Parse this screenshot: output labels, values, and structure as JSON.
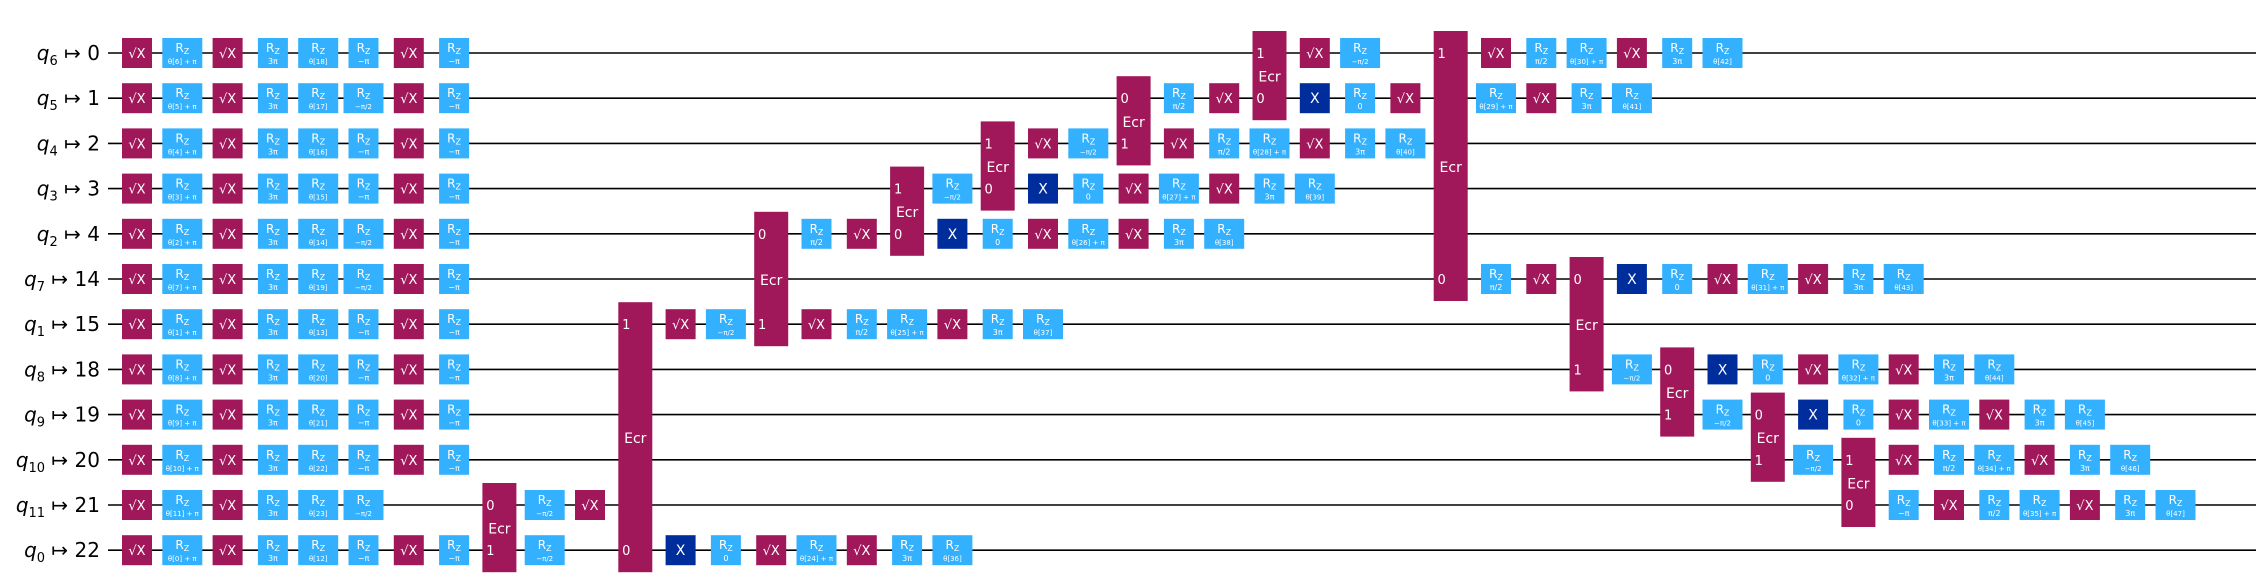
{
  "colors": {
    "sx": "#a0185a",
    "rz": "#33b1ff",
    "x": "#002d9c",
    "ecr": "#a0185a",
    "wire": "#000000",
    "text_on_gate": "#ffffff",
    "background": "#ffffff"
  },
  "wires": [
    {
      "qubit": "q",
      "sub": "6",
      "index": "0"
    },
    {
      "qubit": "q",
      "sub": "5",
      "index": "1"
    },
    {
      "qubit": "q",
      "sub": "4",
      "index": "2"
    },
    {
      "qubit": "q",
      "sub": "3",
      "index": "3"
    },
    {
      "qubit": "q",
      "sub": "2",
      "index": "4"
    },
    {
      "qubit": "q",
      "sub": "7",
      "index": "14"
    },
    {
      "qubit": "q",
      "sub": "1",
      "index": "15"
    },
    {
      "qubit": "q",
      "sub": "8",
      "index": "18"
    },
    {
      "qubit": "q",
      "sub": "9",
      "index": "19"
    },
    {
      "qubit": "q",
      "sub": "10",
      "index": "20"
    },
    {
      "qubit": "q",
      "sub": "11",
      "index": "21"
    },
    {
      "qubit": "q",
      "sub": "0",
      "index": "22"
    }
  ],
  "gate_labels": {
    "sx": "√X",
    "rz": "R",
    "rz_sub": "Z",
    "x": "X",
    "ecr": "Ecr"
  },
  "gates": [
    {
      "type": "sx",
      "row": 0,
      "col": 0
    },
    {
      "type": "rz",
      "row": 0,
      "col": 1,
      "param": "θ[6] + π"
    },
    {
      "type": "sx",
      "row": 0,
      "col": 2
    },
    {
      "type": "rz",
      "row": 0,
      "col": 3,
      "param": "3π"
    },
    {
      "type": "rz",
      "row": 0,
      "col": 4,
      "param": "θ[18]"
    },
    {
      "type": "rz",
      "row": 0,
      "col": 5,
      "param": "−π"
    },
    {
      "type": "sx",
      "row": 0,
      "col": 6
    },
    {
      "type": "rz",
      "row": 0,
      "col": 7,
      "param": "−π"
    },
    {
      "type": "sx",
      "row": 1,
      "col": 0
    },
    {
      "type": "rz",
      "row": 1,
      "col": 1,
      "param": "θ[5] + π"
    },
    {
      "type": "sx",
      "row": 1,
      "col": 2
    },
    {
      "type": "rz",
      "row": 1,
      "col": 3,
      "param": "3π"
    },
    {
      "type": "rz",
      "row": 1,
      "col": 4,
      "param": "θ[17]"
    },
    {
      "type": "rz",
      "row": 1,
      "col": 5,
      "param": "−π/2"
    },
    {
      "type": "sx",
      "row": 1,
      "col": 6
    },
    {
      "type": "rz",
      "row": 1,
      "col": 7,
      "param": "−π"
    },
    {
      "type": "sx",
      "row": 2,
      "col": 0
    },
    {
      "type": "rz",
      "row": 2,
      "col": 1,
      "param": "θ[4] + π"
    },
    {
      "type": "sx",
      "row": 2,
      "col": 2
    },
    {
      "type": "rz",
      "row": 2,
      "col": 3,
      "param": "3π"
    },
    {
      "type": "rz",
      "row": 2,
      "col": 4,
      "param": "θ[16]"
    },
    {
      "type": "rz",
      "row": 2,
      "col": 5,
      "param": "−π"
    },
    {
      "type": "sx",
      "row": 2,
      "col": 6
    },
    {
      "type": "rz",
      "row": 2,
      "col": 7,
      "param": "−π"
    },
    {
      "type": "sx",
      "row": 3,
      "col": 0
    },
    {
      "type": "rz",
      "row": 3,
      "col": 1,
      "param": "θ[3] + π"
    },
    {
      "type": "sx",
      "row": 3,
      "col": 2
    },
    {
      "type": "rz",
      "row": 3,
      "col": 3,
      "param": "3π"
    },
    {
      "type": "rz",
      "row": 3,
      "col": 4,
      "param": "θ[15]"
    },
    {
      "type": "rz",
      "row": 3,
      "col": 5,
      "param": "−π"
    },
    {
      "type": "sx",
      "row": 3,
      "col": 6
    },
    {
      "type": "rz",
      "row": 3,
      "col": 7,
      "param": "−π"
    },
    {
      "type": "sx",
      "row": 4,
      "col": 0
    },
    {
      "type": "rz",
      "row": 4,
      "col": 1,
      "param": "θ[2] + π"
    },
    {
      "type": "sx",
      "row": 4,
      "col": 2
    },
    {
      "type": "rz",
      "row": 4,
      "col": 3,
      "param": "3π"
    },
    {
      "type": "rz",
      "row": 4,
      "col": 4,
      "param": "θ[14]"
    },
    {
      "type": "rz",
      "row": 4,
      "col": 5,
      "param": "−π/2"
    },
    {
      "type": "sx",
      "row": 4,
      "col": 6
    },
    {
      "type": "rz",
      "row": 4,
      "col": 7,
      "param": "−π"
    },
    {
      "type": "sx",
      "row": 5,
      "col": 0
    },
    {
      "type": "rz",
      "row": 5,
      "col": 1,
      "param": "θ[7] + π"
    },
    {
      "type": "sx",
      "row": 5,
      "col": 2
    },
    {
      "type": "rz",
      "row": 5,
      "col": 3,
      "param": "3π"
    },
    {
      "type": "rz",
      "row": 5,
      "col": 4,
      "param": "θ[19]"
    },
    {
      "type": "rz",
      "row": 5,
      "col": 5,
      "param": "−π/2"
    },
    {
      "type": "sx",
      "row": 5,
      "col": 6
    },
    {
      "type": "rz",
      "row": 5,
      "col": 7,
      "param": "−π"
    },
    {
      "type": "sx",
      "row": 6,
      "col": 0
    },
    {
      "type": "rz",
      "row": 6,
      "col": 1,
      "param": "θ[1] + π"
    },
    {
      "type": "sx",
      "row": 6,
      "col": 2
    },
    {
      "type": "rz",
      "row": 6,
      "col": 3,
      "param": "3π"
    },
    {
      "type": "rz",
      "row": 6,
      "col": 4,
      "param": "θ[13]"
    },
    {
      "type": "rz",
      "row": 6,
      "col": 5,
      "param": "−π"
    },
    {
      "type": "sx",
      "row": 6,
      "col": 6
    },
    {
      "type": "rz",
      "row": 6,
      "col": 7,
      "param": "−π"
    },
    {
      "type": "sx",
      "row": 7,
      "col": 0
    },
    {
      "type": "rz",
      "row": 7,
      "col": 1,
      "param": "θ[8] + π"
    },
    {
      "type": "sx",
      "row": 7,
      "col": 2
    },
    {
      "type": "rz",
      "row": 7,
      "col": 3,
      "param": "3π"
    },
    {
      "type": "rz",
      "row": 7,
      "col": 4,
      "param": "θ[20]"
    },
    {
      "type": "rz",
      "row": 7,
      "col": 5,
      "param": "−π"
    },
    {
      "type": "sx",
      "row": 7,
      "col": 6
    },
    {
      "type": "rz",
      "row": 7,
      "col": 7,
      "param": "−π"
    },
    {
      "type": "sx",
      "row": 8,
      "col": 0
    },
    {
      "type": "rz",
      "row": 8,
      "col": 1,
      "param": "θ[9] + π"
    },
    {
      "type": "sx",
      "row": 8,
      "col": 2
    },
    {
      "type": "rz",
      "row": 8,
      "col": 3,
      "param": "3π"
    },
    {
      "type": "rz",
      "row": 8,
      "col": 4,
      "param": "θ[21]"
    },
    {
      "type": "rz",
      "row": 8,
      "col": 5,
      "param": "−π"
    },
    {
      "type": "sx",
      "row": 8,
      "col": 6
    },
    {
      "type": "rz",
      "row": 8,
      "col": 7,
      "param": "−π"
    },
    {
      "type": "sx",
      "row": 9,
      "col": 0
    },
    {
      "type": "rz",
      "row": 9,
      "col": 1,
      "param": "θ[10] + π"
    },
    {
      "type": "sx",
      "row": 9,
      "col": 2
    },
    {
      "type": "rz",
      "row": 9,
      "col": 3,
      "param": "3π"
    },
    {
      "type": "rz",
      "row": 9,
      "col": 4,
      "param": "θ[22]"
    },
    {
      "type": "rz",
      "row": 9,
      "col": 5,
      "param": "−π"
    },
    {
      "type": "sx",
      "row": 9,
      "col": 6
    },
    {
      "type": "rz",
      "row": 9,
      "col": 7,
      "param": "−π"
    },
    {
      "type": "sx",
      "row": 10,
      "col": 0
    },
    {
      "type": "rz",
      "row": 10,
      "col": 1,
      "param": "θ[11] + π"
    },
    {
      "type": "sx",
      "row": 10,
      "col": 2
    },
    {
      "type": "rz",
      "row": 10,
      "col": 3,
      "param": "3π"
    },
    {
      "type": "rz",
      "row": 10,
      "col": 4,
      "param": "θ[23]"
    },
    {
      "type": "rz",
      "row": 10,
      "col": 5,
      "param": "−π/2"
    },
    {
      "type": "sx",
      "row": 11,
      "col": 0
    },
    {
      "type": "rz",
      "row": 11,
      "col": 1,
      "param": "θ[0] + π"
    },
    {
      "type": "sx",
      "row": 11,
      "col": 2
    },
    {
      "type": "rz",
      "row": 11,
      "col": 3,
      "param": "3π"
    },
    {
      "type": "rz",
      "row": 11,
      "col": 4,
      "param": "θ[12]"
    },
    {
      "type": "rz",
      "row": 11,
      "col": 5,
      "param": "−π"
    },
    {
      "type": "sx",
      "row": 11,
      "col": 6
    },
    {
      "type": "rz",
      "row": 11,
      "col": 7,
      "param": "−π"
    },
    {
      "type": "ecr",
      "col": 8,
      "top": 10,
      "bottom": 11,
      "top_port": "0",
      "bottom_port": "1"
    },
    {
      "type": "rz",
      "row": 10,
      "col": 9,
      "param": "−π/2"
    },
    {
      "type": "rz",
      "row": 11,
      "col": 9,
      "param": "−π/2"
    },
    {
      "type": "sx",
      "row": 10,
      "col": 10
    },
    {
      "type": "ecr",
      "col": 11,
      "top": 6,
      "bottom": 11,
      "top_port": "1",
      "bottom_port": "0"
    },
    {
      "type": "sx",
      "row": 6,
      "col": 12
    },
    {
      "type": "x",
      "row": 11,
      "col": 12
    },
    {
      "type": "rz",
      "row": 6,
      "col": 13,
      "param": "−π/2"
    },
    {
      "type": "rz",
      "row": 11,
      "col": 13,
      "param": "0"
    },
    {
      "type": "ecr",
      "col": 14,
      "top": 4,
      "bottom": 6,
      "top_port": "0",
      "bottom_port": "1"
    },
    {
      "type": "sx",
      "row": 11,
      "col": 14
    },
    {
      "type": "rz",
      "row": 4,
      "col": 15,
      "param": "π/2"
    },
    {
      "type": "sx",
      "row": 6,
      "col": 15
    },
    {
      "type": "rz",
      "row": 11,
      "col": 15,
      "param": "θ[24] + π"
    },
    {
      "type": "sx",
      "row": 4,
      "col": 16
    },
    {
      "type": "rz",
      "row": 6,
      "col": 16,
      "param": "π/2"
    },
    {
      "type": "sx",
      "row": 11,
      "col": 16
    },
    {
      "type": "ecr",
      "col": 17,
      "top": 3,
      "bottom": 4,
      "top_port": "1",
      "bottom_port": "0"
    },
    {
      "type": "rz",
      "row": 6,
      "col": 17,
      "param": "θ[25] + π"
    },
    {
      "type": "rz",
      "row": 11,
      "col": 17,
      "param": "3π"
    },
    {
      "type": "rz",
      "row": 3,
      "col": 18,
      "param": "−π/2"
    },
    {
      "type": "x",
      "row": 4,
      "col": 18
    },
    {
      "type": "sx",
      "row": 6,
      "col": 18
    },
    {
      "type": "rz",
      "row": 11,
      "col": 18,
      "param": "θ[36]"
    },
    {
      "type": "ecr",
      "col": 19,
      "top": 2,
      "bottom": 3,
      "top_port": "1",
      "bottom_port": "0"
    },
    {
      "type": "rz",
      "row": 4,
      "col": 19,
      "param": "0"
    },
    {
      "type": "rz",
      "row": 6,
      "col": 19,
      "param": "3π"
    },
    {
      "type": "sx",
      "row": 2,
      "col": 20
    },
    {
      "type": "x",
      "row": 3,
      "col": 20
    },
    {
      "type": "sx",
      "row": 4,
      "col": 20
    },
    {
      "type": "rz",
      "row": 6,
      "col": 20,
      "param": "θ[37]"
    },
    {
      "type": "rz",
      "row": 2,
      "col": 21,
      "param": "−π/2"
    },
    {
      "type": "rz",
      "row": 3,
      "col": 21,
      "param": "0"
    },
    {
      "type": "rz",
      "row": 4,
      "col": 21,
      "param": "θ[26] + π"
    },
    {
      "type": "ecr",
      "col": 22,
      "top": 1,
      "bottom": 2,
      "top_port": "0",
      "bottom_port": "1"
    },
    {
      "type": "sx",
      "row": 3,
      "col": 22
    },
    {
      "type": "sx",
      "row": 4,
      "col": 22
    },
    {
      "type": "rz",
      "row": 1,
      "col": 23,
      "param": "π/2"
    },
    {
      "type": "sx",
      "row": 2,
      "col": 23
    },
    {
      "type": "rz",
      "row": 3,
      "col": 23,
      "param": "θ[27] + π"
    },
    {
      "type": "rz",
      "row": 4,
      "col": 23,
      "param": "3π"
    },
    {
      "type": "sx",
      "row": 1,
      "col": 24
    },
    {
      "type": "rz",
      "row": 2,
      "col": 24,
      "param": "π/2"
    },
    {
      "type": "sx",
      "row": 3,
      "col": 24
    },
    {
      "type": "rz",
      "row": 4,
      "col": 24,
      "param": "θ[38]"
    },
    {
      "type": "ecr",
      "col": 25,
      "top": 0,
      "bottom": 1,
      "top_port": "1",
      "bottom_port": "0"
    },
    {
      "type": "rz",
      "row": 2,
      "col": 25,
      "param": "θ[28] + π"
    },
    {
      "type": "rz",
      "row": 3,
      "col": 25,
      "param": "3π"
    },
    {
      "type": "sx",
      "row": 0,
      "col": 26
    },
    {
      "type": "x",
      "row": 1,
      "col": 26
    },
    {
      "type": "sx",
      "row": 2,
      "col": 26
    },
    {
      "type": "rz",
      "row": 3,
      "col": 26,
      "param": "θ[39]"
    },
    {
      "type": "rz",
      "row": 0,
      "col": 27,
      "param": "−π/2"
    },
    {
      "type": "rz",
      "row": 1,
      "col": 27,
      "param": "0"
    },
    {
      "type": "rz",
      "row": 2,
      "col": 27,
      "param": "3π"
    },
    {
      "type": "sx",
      "row": 1,
      "col": 28
    },
    {
      "type": "rz",
      "row": 2,
      "col": 28,
      "param": "θ[40]"
    },
    {
      "type": "ecr",
      "col": 29,
      "top": 0,
      "bottom": 5,
      "top_port": "1",
      "bottom_port": "0"
    },
    {
      "type": "sx",
      "row": 0,
      "col": 30
    },
    {
      "type": "rz",
      "row": 1,
      "col": 30,
      "param": "θ[29] + π"
    },
    {
      "type": "rz",
      "row": 5,
      "col": 30,
      "param": "π/2"
    },
    {
      "type": "rz",
      "row": 0,
      "col": 31,
      "param": "π/2"
    },
    {
      "type": "sx",
      "row": 1,
      "col": 31
    },
    {
      "type": "sx",
      "row": 5,
      "col": 31
    },
    {
      "type": "rz",
      "row": 0,
      "col": 32,
      "param": "θ[30] + π"
    },
    {
      "type": "rz",
      "row": 1,
      "col": 32,
      "param": "3π"
    },
    {
      "type": "ecr",
      "col": 32,
      "top": 5,
      "bottom": 7,
      "top_port": "0",
      "bottom_port": "1"
    },
    {
      "type": "sx",
      "row": 0,
      "col": 33
    },
    {
      "type": "rz",
      "row": 1,
      "col": 33,
      "param": "θ[41]"
    },
    {
      "type": "x",
      "row": 5,
      "col": 33
    },
    {
      "type": "rz",
      "row": 7,
      "col": 33,
      "param": "−π/2"
    },
    {
      "type": "rz",
      "row": 0,
      "col": 34,
      "param": "3π"
    },
    {
      "type": "rz",
      "row": 5,
      "col": 34,
      "param": "0"
    },
    {
      "type": "ecr",
      "col": 34,
      "top": 7,
      "bottom": 8,
      "top_port": "0",
      "bottom_port": "1"
    },
    {
      "type": "rz",
      "row": 0,
      "col": 35,
      "param": "θ[42]"
    },
    {
      "type": "sx",
      "row": 5,
      "col": 35
    },
    {
      "type": "x",
      "row": 7,
      "col": 35
    },
    {
      "type": "rz",
      "row": 8,
      "col": 35,
      "param": "−π/2"
    },
    {
      "type": "rz",
      "row": 5,
      "col": 36,
      "param": "θ[31] + π"
    },
    {
      "type": "rz",
      "row": 7,
      "col": 36,
      "param": "0"
    },
    {
      "type": "ecr",
      "col": 36,
      "top": 8,
      "bottom": 9,
      "top_port": "0",
      "bottom_port": "1"
    },
    {
      "type": "sx",
      "row": 5,
      "col": 37
    },
    {
      "type": "sx",
      "row": 7,
      "col": 37
    },
    {
      "type": "x",
      "row": 8,
      "col": 37
    },
    {
      "type": "rz",
      "row": 9,
      "col": 37,
      "param": "−π/2"
    },
    {
      "type": "rz",
      "row": 5,
      "col": 38,
      "param": "3π"
    },
    {
      "type": "rz",
      "row": 7,
      "col": 38,
      "param": "θ[32] + π"
    },
    {
      "type": "rz",
      "row": 8,
      "col": 38,
      "param": "0"
    },
    {
      "type": "ecr",
      "col": 38,
      "top": 9,
      "bottom": 10,
      "top_port": "1",
      "bottom_port": "0"
    },
    {
      "type": "rz",
      "row": 5,
      "col": 39,
      "param": "θ[43]"
    },
    {
      "type": "sx",
      "row": 7,
      "col": 39
    },
    {
      "type": "sx",
      "row": 8,
      "col": 39
    },
    {
      "type": "sx",
      "row": 9,
      "col": 39
    },
    {
      "type": "rz",
      "row": 10,
      "col": 39,
      "param": "−π"
    },
    {
      "type": "rz",
      "row": 7,
      "col": 40,
      "param": "3π"
    },
    {
      "type": "rz",
      "row": 8,
      "col": 40,
      "param": "θ[33] + π"
    },
    {
      "type": "rz",
      "row": 9,
      "col": 40,
      "param": "π/2"
    },
    {
      "type": "sx",
      "row": 10,
      "col": 40
    },
    {
      "type": "rz",
      "row": 7,
      "col": 41,
      "param": "θ[44]"
    },
    {
      "type": "sx",
      "row": 8,
      "col": 41
    },
    {
      "type": "rz",
      "row": 9,
      "col": 41,
      "param": "θ[34] + π"
    },
    {
      "type": "rz",
      "row": 10,
      "col": 41,
      "param": "π/2"
    },
    {
      "type": "rz",
      "row": 8,
      "col": 42,
      "param": "3π"
    },
    {
      "type": "sx",
      "row": 9,
      "col": 42
    },
    {
      "type": "rz",
      "row": 10,
      "col": 42,
      "param": "θ[35] + π"
    },
    {
      "type": "rz",
      "row": 8,
      "col": 43,
      "param": "θ[45]"
    },
    {
      "type": "rz",
      "row": 9,
      "col": 43,
      "param": "3π"
    },
    {
      "type": "sx",
      "row": 10,
      "col": 43
    },
    {
      "type": "rz",
      "row": 9,
      "col": 44,
      "param": "θ[46]"
    },
    {
      "type": "rz",
      "row": 10,
      "col": 44,
      "param": "3π"
    },
    {
      "type": "rz",
      "row": 10,
      "col": 45,
      "param": "θ[47]"
    }
  ]
}
